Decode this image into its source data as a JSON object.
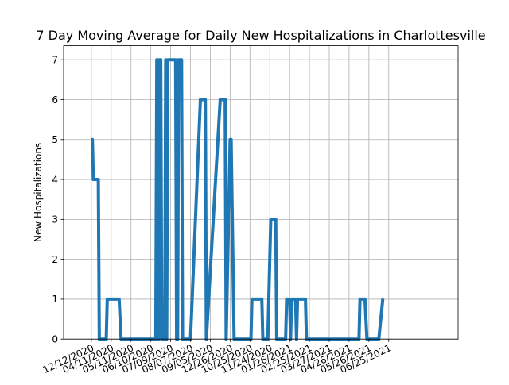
{
  "chart_data": {
    "type": "line",
    "title": "7 Day Moving Average for Daily New Hospitalizations in Charlottesville",
    "xlabel": "",
    "ylabel": "New Hospitalizations",
    "ylim": [
      0,
      7.35
    ],
    "yticks": [
      0,
      1,
      2,
      3,
      4,
      5,
      6,
      7
    ],
    "xlim": [
      -1.4,
      18.5
    ],
    "xticks": [
      {
        "x": 0,
        "label": "12/12/2020"
      },
      {
        "x": 1,
        "label": "04/11/2020"
      },
      {
        "x": 2,
        "label": "05/11/2020"
      },
      {
        "x": 3,
        "label": "06/10/2020"
      },
      {
        "x": 4,
        "label": "07/09/2020"
      },
      {
        "x": 5,
        "label": "08/07/2020"
      },
      {
        "x": 6,
        "label": "09/05/2020"
      },
      {
        "x": 7,
        "label": "12/26/2020"
      },
      {
        "x": 8,
        "label": "10/25/2020"
      },
      {
        "x": 9,
        "label": "11/24/2020"
      },
      {
        "x": 10,
        "label": "01/26/2021"
      },
      {
        "x": 11,
        "label": "02/25/2021"
      },
      {
        "x": 12,
        "label": "03/27/2021"
      },
      {
        "x": 13,
        "label": "04/26/2021"
      },
      {
        "x": 14,
        "label": "05/26/2021"
      },
      {
        "x": 15,
        "label": "06/25/2021"
      }
    ],
    "grid": true,
    "legend": "none",
    "series": [
      {
        "color": "#1f77b4",
        "x": [
          0,
          0.05,
          0.1,
          0.15,
          0.2,
          0.35,
          0.4,
          0.6,
          0.75,
          0.8,
          1.0,
          1.2,
          1.25,
          1.4,
          1.5,
          3.25,
          3.3,
          3.35,
          3.4,
          3.45,
          3.5,
          3.55,
          3.6,
          3.65,
          3.7,
          3.75,
          3.8,
          3.85,
          3.9,
          4.25,
          4.3,
          4.35,
          4.4,
          4.45,
          4.5,
          4.55,
          4.6,
          5.0,
          5.5,
          5.6,
          5.75,
          5.8,
          6.5,
          6.55,
          6.6,
          6.75,
          6.8,
          7.0,
          7.05,
          7.2,
          8.05,
          8.1,
          8.2,
          8.3,
          8.4,
          8.45,
          8.6,
          8.65,
          8.9,
          9.05,
          9.1,
          9.2,
          9.3,
          9.35,
          9.8,
          9.85,
          10.0,
          10.05,
          10.1,
          10.3,
          10.35,
          10.4,
          10.5,
          10.55,
          10.6,
          10.7,
          10.8,
          10.85,
          10.9,
          13.5,
          13.55,
          13.6,
          13.7,
          13.75,
          13.8,
          13.9,
          14.0,
          14.5,
          14.7,
          14.75
        ],
        "y": [
          5,
          5,
          4,
          4,
          4,
          4,
          0,
          0,
          0,
          1,
          1,
          1,
          1,
          1,
          0,
          0,
          7,
          7,
          0,
          7,
          7,
          0,
          0,
          0,
          0,
          7,
          0,
          7,
          7,
          7,
          0,
          0,
          7,
          7,
          7,
          7,
          0,
          0,
          6,
          6,
          6,
          0,
          6,
          6,
          6,
          6,
          0,
          5,
          5,
          0,
          0,
          1,
          1,
          1,
          1,
          1,
          1,
          0,
          0,
          3,
          3,
          3,
          3,
          0,
          0,
          1,
          1,
          0,
          1,
          1,
          0,
          1,
          1,
          1,
          1,
          1,
          1,
          0,
          0,
          0,
          1,
          1,
          1,
          1,
          1,
          0,
          0,
          0,
          1,
          1
        ]
      }
    ]
  }
}
